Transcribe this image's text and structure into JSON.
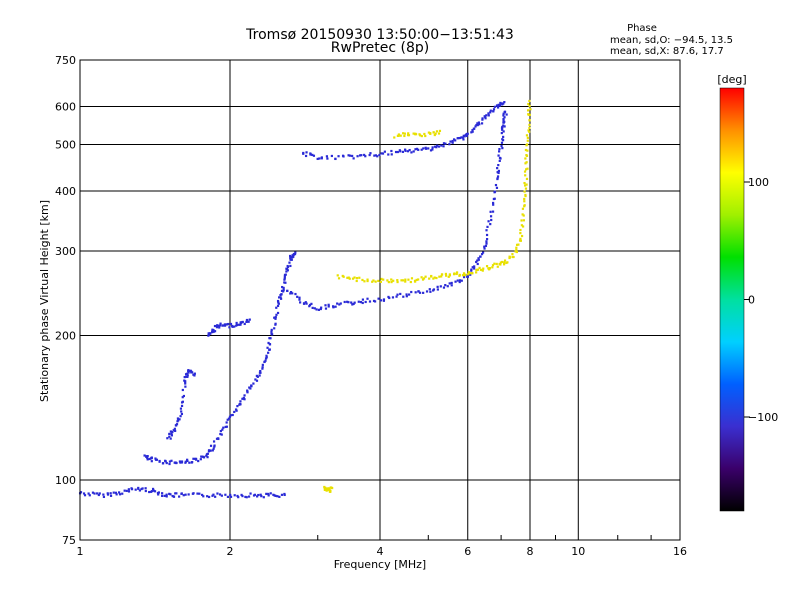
{
  "chart_data": {
    "type": "scatter",
    "title": "Tromsø 20150930 13:50:00−13:51:43",
    "subtitle": "RwPretec (8p)",
    "xlabel": "Frequency [MHz]",
    "ylabel": "Stationary phase Virtual Height [km]",
    "x_scale": "log",
    "y_scale": "log",
    "xlim": [
      1,
      16
    ],
    "ylim": [
      75,
      750
    ],
    "x_ticks": [
      1,
      2,
      4,
      6,
      8,
      10,
      16
    ],
    "x_tick_labels": [
      "1",
      "2",
      "4",
      "6",
      "8",
      "10",
      "16"
    ],
    "y_ticks": [
      75,
      100,
      200,
      300,
      400,
      500,
      600,
      750
    ],
    "y_tick_labels": [
      "75",
      "100",
      "200",
      "300",
      "400",
      "500",
      "600",
      "750"
    ],
    "grid": true,
    "stats": {
      "heading": "Phase",
      "o_line": "mean, sd,O: −94.5, 13.5",
      "x_line": "mean, sd,X:  87.6, 17.7"
    },
    "colorbar": {
      "label": "[deg]",
      "range": [
        -180,
        180
      ],
      "ticks": [
        100,
        0,
        -100
      ],
      "tick_labels": [
        "100",
        "0",
        "−100"
      ],
      "colormap": [
        "#000000",
        "#3a006a",
        "#3a2fd0",
        "#0060ff",
        "#00d0ff",
        "#00e0a0",
        "#00e000",
        "#a0f000",
        "#ffff00",
        "#ff9000",
        "#ff0000"
      ]
    },
    "series": [
      {
        "name": "O",
        "color": "#2a2ad6",
        "segments": [
          [
            [
              1.0,
              94
            ],
            [
              1.1,
              93
            ],
            [
              1.2,
              94
            ],
            [
              1.3,
              96
            ],
            [
              1.4,
              95
            ],
            [
              1.5,
              93
            ],
            [
              1.6,
              93
            ],
            [
              1.8,
              93
            ],
            [
              2.0,
              93
            ],
            [
              2.2,
              93
            ],
            [
              2.4,
              93
            ],
            [
              2.6,
              93
            ]
          ],
          [
            [
              1.35,
              112
            ],
            [
              1.4,
              110
            ],
            [
              1.5,
              109
            ],
            [
              1.6,
              109
            ],
            [
              1.7,
              110
            ],
            [
              1.8,
              112
            ],
            [
              1.85,
              118
            ],
            [
              1.95,
              128
            ],
            [
              2.05,
              140
            ],
            [
              2.15,
              150
            ],
            [
              2.25,
              162
            ],
            [
              2.35,
              175
            ],
            [
              2.4,
              190
            ],
            [
              2.45,
              210
            ],
            [
              2.5,
              235
            ],
            [
              2.55,
              250
            ],
            [
              2.6,
              270
            ],
            [
              2.65,
              290
            ],
            [
              2.7,
              300
            ]
          ],
          [
            [
              1.5,
              122
            ],
            [
              1.55,
              128
            ],
            [
              1.6,
              138
            ],
            [
              1.62,
              160
            ],
            [
              1.65,
              170
            ],
            [
              1.7,
              165
            ]
          ],
          [
            [
              1.8,
              200
            ],
            [
              1.85,
              205
            ],
            [
              1.9,
              210
            ],
            [
              2.0,
              210
            ],
            [
              2.1,
              212
            ],
            [
              2.2,
              215
            ]
          ],
          [
            [
              2.6,
              250
            ],
            [
              2.8,
              235
            ],
            [
              3.0,
              228
            ],
            [
              3.3,
              232
            ],
            [
              3.6,
              235
            ],
            [
              4.0,
              238
            ],
            [
              4.5,
              243
            ],
            [
              5.0,
              248
            ],
            [
              5.5,
              255
            ],
            [
              6.0,
              265
            ],
            [
              6.3,
              285
            ],
            [
              6.5,
              310
            ],
            [
              6.7,
              360
            ],
            [
              6.85,
              420
            ],
            [
              6.95,
              470
            ],
            [
              7.05,
              530
            ],
            [
              7.1,
              560
            ],
            [
              7.15,
              590
            ]
          ],
          [
            [
              2.8,
              480
            ],
            [
              3.0,
              470
            ],
            [
              3.4,
              470
            ],
            [
              3.8,
              475
            ],
            [
              4.2,
              480
            ],
            [
              4.6,
              485
            ],
            [
              5.0,
              490
            ],
            [
              5.4,
              500
            ],
            [
              5.8,
              515
            ],
            [
              6.0,
              525
            ],
            [
              6.3,
              550
            ],
            [
              6.6,
              580
            ],
            [
              6.9,
              600
            ],
            [
              7.1,
              610
            ]
          ]
        ]
      },
      {
        "name": "X",
        "color": "#e8e000",
        "segments": [
          [
            [
              3.3,
              265
            ],
            [
              3.6,
              262
            ],
            [
              4.0,
              260
            ],
            [
              4.4,
              260
            ],
            [
              4.8,
              262
            ],
            [
              5.2,
              265
            ],
            [
              5.6,
              268
            ],
            [
              6.0,
              270
            ],
            [
              6.4,
              275
            ],
            [
              6.8,
              280
            ],
            [
              7.2,
              285
            ],
            [
              7.5,
              300
            ],
            [
              7.7,
              330
            ],
            [
              7.8,
              380
            ],
            [
              7.85,
              430
            ],
            [
              7.9,
              490
            ],
            [
              7.95,
              560
            ],
            [
              8.0,
              620
            ]
          ],
          [
            [
              4.3,
              520
            ],
            [
              4.6,
              525
            ],
            [
              5.0,
              525
            ],
            [
              5.3,
              530
            ]
          ],
          [
            [
              3.1,
              96
            ],
            [
              3.15,
              95
            ],
            [
              3.2,
              96
            ]
          ]
        ]
      }
    ]
  }
}
